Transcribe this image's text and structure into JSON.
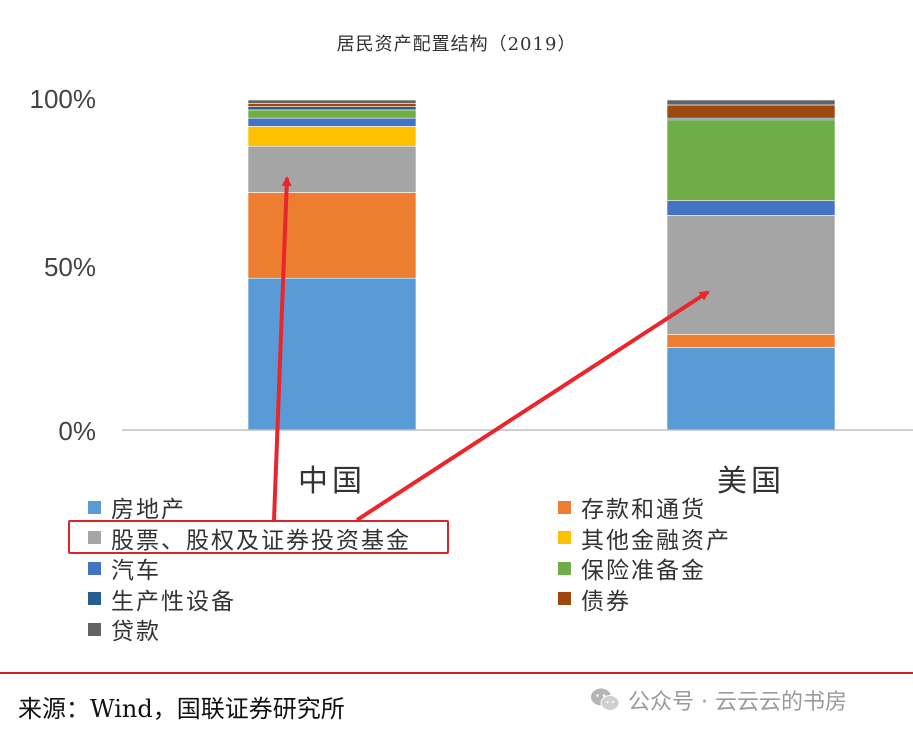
{
  "chart_data": {
    "type": "bar",
    "stacked": true,
    "title": "居民资产配置结构（2019）",
    "categories": [
      "中国",
      "美国"
    ],
    "yticks": [
      "100%",
      "50%",
      "0%"
    ],
    "ylim": [
      0,
      100
    ],
    "series": [
      {
        "name": "房地产",
        "color": "#5b9bd5",
        "values": [
          46,
          25
        ]
      },
      {
        "name": "存款和通货",
        "color": "#ed7d31",
        "values": [
          26,
          4
        ]
      },
      {
        "name": "股票、股权及证券投资基金",
        "color": "#a5a5a5",
        "values": [
          14,
          36
        ]
      },
      {
        "name": "其他金融资产",
        "color": "#ffc000",
        "values": [
          6,
          0
        ]
      },
      {
        "name": "汽车",
        "color": "#4472c4",
        "values": [
          2.5,
          4.5
        ]
      },
      {
        "name": "保险准备金",
        "color": "#70ad47",
        "values": [
          2.5,
          24.5
        ]
      },
      {
        "name": "生产性设备",
        "color": "#255e91",
        "values": [
          1,
          0.5
        ]
      },
      {
        "name": "债券",
        "color": "#9e480e",
        "values": [
          1,
          4
        ]
      },
      {
        "name": "贷款",
        "color": "#636363",
        "values": [
          1,
          1.5
        ]
      }
    ],
    "legend_position": "bottom",
    "grid": false,
    "highlighted_series": "股票、股权及证券投资基金"
  },
  "source": {
    "text": "来源：Wind，国联证券研究所"
  },
  "watermark": {
    "text": "公众号 · 云云云的书房",
    "icon": "wechat-icon"
  }
}
